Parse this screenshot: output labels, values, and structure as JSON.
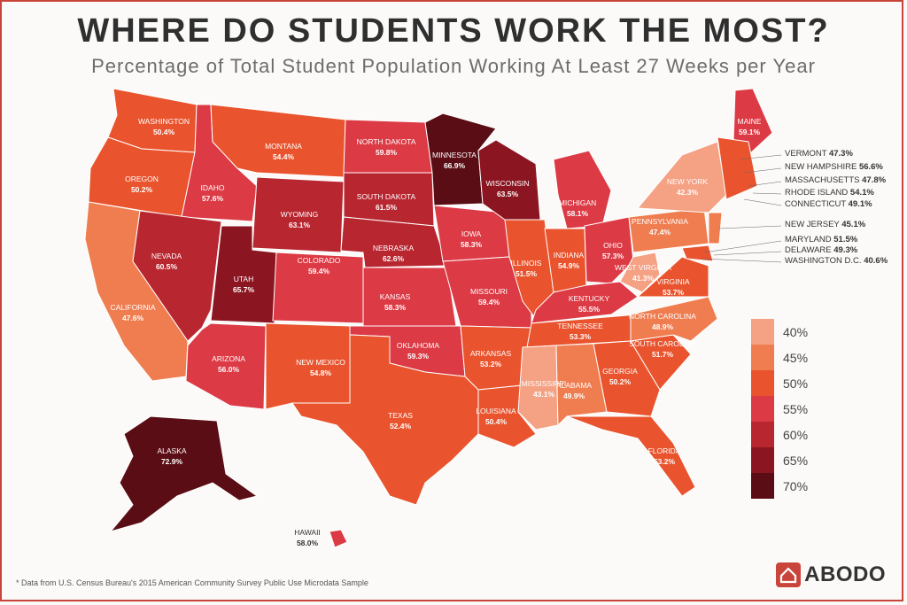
{
  "title": "WHERE DO STUDENTS WORK THE MOST?",
  "subtitle": "Percentage of Total Student Population Working At Least 27 Weeks per Year",
  "footnote": "* Data from U.S. Census Bureau's 2015 American Community Survey Public Use Microdata Sample",
  "logo": "ABODO",
  "colors": {
    "40": "#f4a184",
    "45": "#ef7d50",
    "50": "#e9542e",
    "55": "#dc3a45",
    "60": "#b82630",
    "65": "#8b1621",
    "70": "#5a0d14"
  },
  "legend": [
    "40%",
    "45%",
    "50%",
    "55%",
    "60%",
    "65%",
    "70%"
  ],
  "states": [
    {
      "name": "WASHINGTON",
      "value": "50.4%"
    },
    {
      "name": "OREGON",
      "value": "50.2%"
    },
    {
      "name": "CALIFORNIA",
      "value": "47.6%"
    },
    {
      "name": "IDAHO",
      "value": "57.6%"
    },
    {
      "name": "NEVADA",
      "value": "60.5%"
    },
    {
      "name": "MONTANA",
      "value": "54.4%"
    },
    {
      "name": "WYOMING",
      "value": "63.1%"
    },
    {
      "name": "UTAH",
      "value": "65.7%"
    },
    {
      "name": "ARIZONA",
      "value": "56.0%"
    },
    {
      "name": "COLORADO",
      "value": "59.4%"
    },
    {
      "name": "NEW MEXICO",
      "value": "54.8%"
    },
    {
      "name": "NORTH DAKOTA",
      "value": "59.8%"
    },
    {
      "name": "SOUTH DAKOTA",
      "value": "61.5%"
    },
    {
      "name": "NEBRASKA",
      "value": "62.6%"
    },
    {
      "name": "KANSAS",
      "value": "58.3%"
    },
    {
      "name": "OKLAHOMA",
      "value": "59.3%"
    },
    {
      "name": "TEXAS",
      "value": "52.4%"
    },
    {
      "name": "MINNESOTA",
      "value": "66.9%"
    },
    {
      "name": "IOWA",
      "value": "58.3%"
    },
    {
      "name": "MISSOURI",
      "value": "59.4%"
    },
    {
      "name": "ARKANSAS",
      "value": "53.2%"
    },
    {
      "name": "LOUISIANA",
      "value": "50.4%"
    },
    {
      "name": "WISCONSIN",
      "value": "63.5%"
    },
    {
      "name": "ILLINOIS",
      "value": "51.5%"
    },
    {
      "name": "MICHIGAN",
      "value": "58.1%"
    },
    {
      "name": "INDIANA",
      "value": "54.9%"
    },
    {
      "name": "OHIO",
      "value": "57.3%"
    },
    {
      "name": "KENTUCKY",
      "value": "55.5%"
    },
    {
      "name": "TENNESSEE",
      "value": "53.3%"
    },
    {
      "name": "MISSISSIPPI",
      "value": "43.1%"
    },
    {
      "name": "ALABAMA",
      "value": "49.9%"
    },
    {
      "name": "GEORGIA",
      "value": "50.2%"
    },
    {
      "name": "FLORIDA",
      "value": "53.2%"
    },
    {
      "name": "SOUTH CAROLINA",
      "value": "51.7%"
    },
    {
      "name": "NORTH CAROLINA",
      "value": "48.9%"
    },
    {
      "name": "VIRGINIA",
      "value": "53.7%"
    },
    {
      "name": "WEST VIRGINIA",
      "value": "41.3%"
    },
    {
      "name": "PENNSYLVANIA",
      "value": "47.4%"
    },
    {
      "name": "NEW YORK",
      "value": "42.3%"
    },
    {
      "name": "MAINE",
      "value": "59.1%"
    },
    {
      "name": "ALASKA",
      "value": "72.9%"
    },
    {
      "name": "HAWAII",
      "value": "58.0%"
    }
  ],
  "callouts": [
    {
      "name": "VERMONT",
      "value": "47.3%"
    },
    {
      "name": "NEW HAMPSHIRE",
      "value": "56.6%"
    },
    {
      "name": "MASSACHUSETTS",
      "value": "47.8%"
    },
    {
      "name": "RHODE ISLAND",
      "value": "54.1%"
    },
    {
      "name": "CONNECTICUT",
      "value": "49.1%"
    },
    {
      "name": "NEW JERSEY",
      "value": "45.1%"
    },
    {
      "name": "MARYLAND",
      "value": "51.5%"
    },
    {
      "name": "DELAWARE",
      "value": "49.3%"
    },
    {
      "name": "WASHINGTON D.C.",
      "value": "40.6%"
    }
  ]
}
